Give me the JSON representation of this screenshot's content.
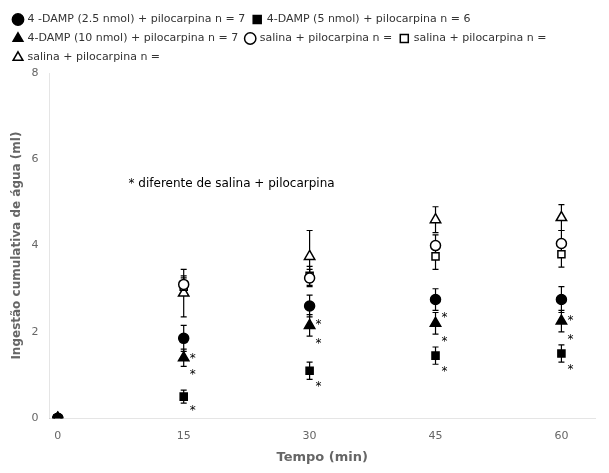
{
  "chart_data": {
    "type": "scatter",
    "xlabel": "Tempo (min)",
    "ylabel": "Ingestão cumulativa de água (ml)",
    "x": [
      0,
      15,
      30,
      45,
      60
    ],
    "series": [
      {
        "name": "4 -DAMP (2.5 nmol) + pilocarpina n = 7",
        "color": "#000000",
        "marker": "circle",
        "values": [
          0,
          1.85,
          2.6,
          2.75,
          2.75
        ],
        "yerr": [
          0,
          0.3,
          0.25,
          0.25,
          0.3
        ]
      },
      {
        "name": "4-DAMP (5 nmol) + pilocarpina n = 6",
        "color": "#000000",
        "marker": "square",
        "values": [
          0,
          0.5,
          1.1,
          1.45,
          1.5
        ],
        "yerr": [
          0,
          0.15,
          0.2,
          0.2,
          0.2
        ]
      },
      {
        "name": "4-DAMP (10 nmol) + pilocarpina n = 7",
        "color": "#000000",
        "marker": "triangle",
        "values": [
          0,
          1.4,
          2.15,
          2.2,
          2.25
        ],
        "yerr": [
          0,
          0.2,
          0.25,
          0.25,
          0.25
        ]
      },
      {
        "name": "salina + pilocarpina n =",
        "color": "#000000",
        "marker": "open-circle",
        "values": [
          0,
          3.1,
          3.25,
          4.0,
          4.05
        ],
        "yerr": [
          0,
          0.2,
          0.2,
          0.25,
          0.3
        ]
      },
      {
        "name": "salina + pilocarpina n =",
        "color": "#000000",
        "marker": "open-square",
        "values": [
          0,
          3.05,
          3.3,
          3.75,
          3.8
        ],
        "yerr": [
          0,
          0.2,
          0.22,
          0.3,
          0.3
        ]
      },
      {
        "name": "salina + pilocarpina n =",
        "color": "#000000",
        "marker": "open-triangle",
        "values": [
          0,
          2.9,
          3.75,
          4.6,
          4.65
        ],
        "yerr": [
          0,
          0.55,
          0.6,
          0.3,
          0.3
        ]
      }
    ],
    "annotations": [
      {
        "text": "* diferente de salina + pilocarpina"
      },
      {
        "text": "*",
        "x": 15,
        "y": 1.55
      },
      {
        "text": "*",
        "x": 15,
        "y": 1.2
      },
      {
        "text": "*",
        "x": 15,
        "y": 0.35
      },
      {
        "text": "*",
        "x": 30,
        "y": 2.35
      },
      {
        "text": "*",
        "x": 30,
        "y": 1.9
      },
      {
        "text": "*",
        "x": 30,
        "y": 0.9
      },
      {
        "text": "*",
        "x": 45,
        "y": 2.5
      },
      {
        "text": "*",
        "x": 45,
        "y": 1.95
      },
      {
        "text": "*",
        "x": 45,
        "y": 1.25
      },
      {
        "text": "*",
        "x": 60,
        "y": 2.45
      },
      {
        "text": "*",
        "x": 60,
        "y": 2.0
      },
      {
        "text": "*",
        "x": 60,
        "y": 1.3
      }
    ],
    "xlim": [
      -1,
      64
    ],
    "xticks": [
      0,
      15,
      30,
      45,
      60
    ],
    "ylim": [
      0,
      8
    ],
    "yticks": [
      0,
      2,
      4,
      6,
      8
    ],
    "grid": false,
    "legend": "upper left"
  }
}
